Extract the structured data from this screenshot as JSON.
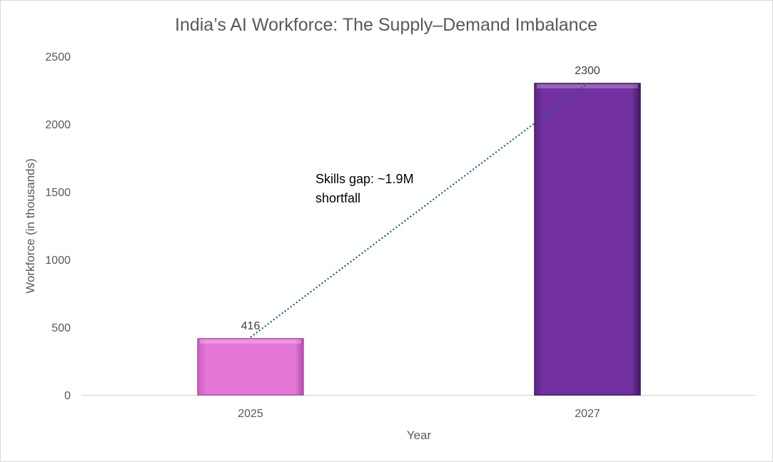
{
  "chart_data": {
    "type": "bar",
    "title": "India’s AI Workforce: The Supply–Demand Imbalance",
    "xlabel": "Year",
    "ylabel": "Workforce (in thousands)",
    "categories": [
      "2025",
      "2027"
    ],
    "values": [
      416,
      2300
    ],
    "data_labels": [
      "416",
      "2300"
    ],
    "bar_colors": [
      "#e476d8",
      "#7230a1"
    ],
    "bar_edge_colors": [
      "#b04ea6",
      "#3f1a5e"
    ],
    "ylim": [
      0,
      2500
    ],
    "yticks": [
      0,
      500,
      1000,
      1500,
      2000,
      2500
    ],
    "grid": false,
    "legend": "none",
    "annotation": {
      "line1": "Skills gap: ~1.9M",
      "line2": "shortfall"
    },
    "trendline": {
      "style": "dotted",
      "color": "#1f5f7a",
      "from_value": 416,
      "to_value": 2300
    }
  }
}
